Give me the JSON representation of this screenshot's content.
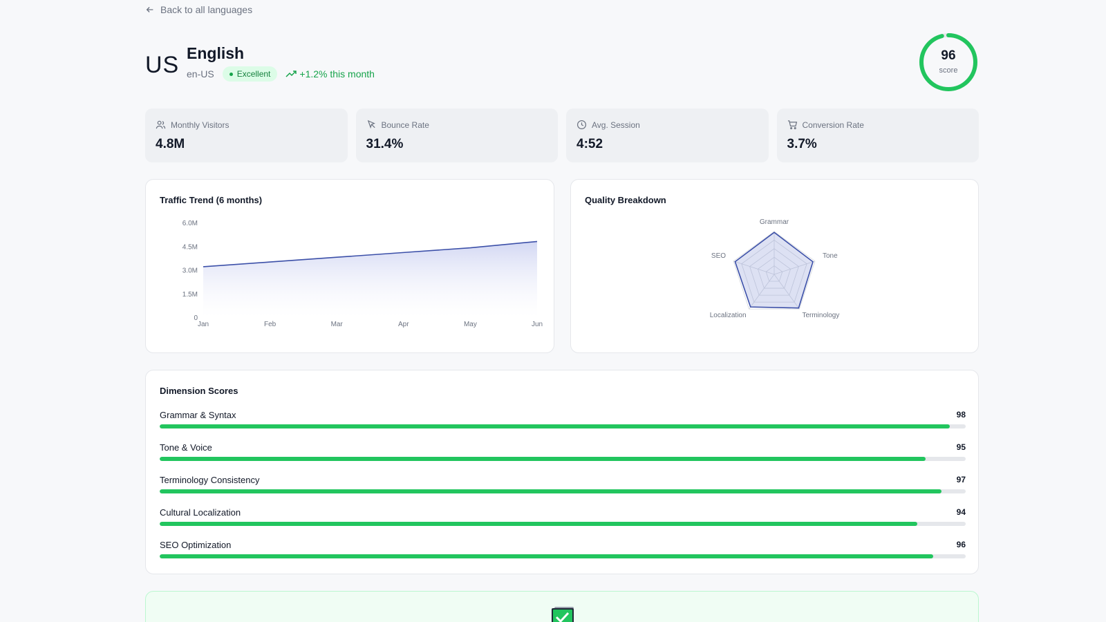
{
  "nav": {
    "back_label": "Back to all languages"
  },
  "language": {
    "flag": "US",
    "name": "English",
    "code": "en-US",
    "status": "Excellent",
    "trend": "+1.2% this month",
    "score": "96",
    "score_fraction": 0.96,
    "score_label": "score"
  },
  "stats": [
    {
      "label": "Monthly Visitors",
      "value": "4.8M",
      "icon": "users-icon"
    },
    {
      "label": "Bounce Rate",
      "value": "31.4%",
      "icon": "cursor-icon"
    },
    {
      "label": "Avg. Session",
      "value": "4:52",
      "icon": "clock-icon"
    },
    {
      "label": "Conversion Rate",
      "value": "3.7%",
      "icon": "cart-icon"
    }
  ],
  "traffic": {
    "title": "Traffic Trend (6 months)"
  },
  "quality": {
    "title": "Quality Breakdown"
  },
  "dimensions": {
    "title": "Dimension Scores",
    "items": [
      {
        "name": "Grammar & Syntax",
        "value": "98"
      },
      {
        "name": "Tone & Voice",
        "value": "95"
      },
      {
        "name": "Terminology Consistency",
        "value": "97"
      },
      {
        "name": "Cultural Localization",
        "value": "94"
      },
      {
        "name": "SEO Optimization",
        "value": "96"
      }
    ]
  },
  "colors": {
    "accent": "#22c55e",
    "line": "#3b4fa8",
    "badge_bg": "#dcfce7"
  },
  "chart_data": [
    {
      "type": "area",
      "title": "Traffic Trend (6 months)",
      "categories": [
        "Jan",
        "Feb",
        "Mar",
        "Apr",
        "May",
        "Jun"
      ],
      "values": [
        3.2,
        3.5,
        3.8,
        4.1,
        4.4,
        4.8
      ],
      "ylim": [
        0,
        6.0
      ],
      "yticks": [
        "0",
        "1.5M",
        "3.0M",
        "4.5M",
        "6.0M"
      ],
      "grid": false
    },
    {
      "type": "radar",
      "title": "Quality Breakdown",
      "axes": [
        "Grammar",
        "Tone",
        "Terminology",
        "Localization",
        "SEO"
      ],
      "values": [
        98,
        95,
        97,
        94,
        96
      ],
      "range": [
        0,
        100
      ]
    }
  ]
}
